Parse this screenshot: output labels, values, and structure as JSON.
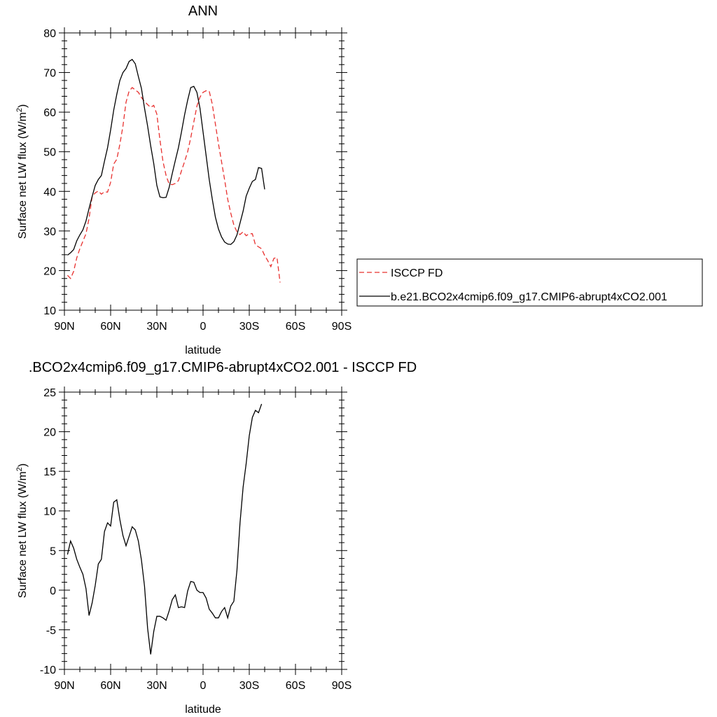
{
  "chart_data": [
    {
      "type": "line",
      "title": "ANN",
      "xlabel": "latitude",
      "ylabel": "Surface net LW flux (W/m",
      "ylabel_sup": "2",
      "ylabel_close": ")",
      "xlim": [
        90,
        -90
      ],
      "ylim": [
        10,
        80
      ],
      "xticks": [
        {
          "value": 90,
          "label": "90N"
        },
        {
          "value": 60,
          "label": "60N"
        },
        {
          "value": 30,
          "label": "30N"
        },
        {
          "value": 0,
          "label": "0"
        },
        {
          "value": -30,
          "label": "30S"
        },
        {
          "value": -60,
          "label": "60S"
        },
        {
          "value": -90,
          "label": "90S"
        }
      ],
      "yticks": [
        {
          "value": 10,
          "label": "10"
        },
        {
          "value": 20,
          "label": "20"
        },
        {
          "value": 30,
          "label": "30"
        },
        {
          "value": 40,
          "label": "40"
        },
        {
          "value": 50,
          "label": "50"
        },
        {
          "value": 60,
          "label": "60"
        },
        {
          "value": 70,
          "label": "70"
        },
        {
          "value": 80,
          "label": "80"
        }
      ],
      "grid": false,
      "legend_position": "outside-right",
      "series": [
        {
          "name": "ISCCP FD",
          "color": "#e8312f",
          "dash": "dashed",
          "points": [
            [
              88,
              18.8
            ],
            [
              86,
              18
            ],
            [
              84,
              19.8
            ],
            [
              82,
              23.2
            ],
            [
              80,
              25.5
            ],
            [
              78,
              27.4
            ],
            [
              76,
              29.3
            ],
            [
              74,
              33.2
            ],
            [
              72,
              38.7
            ],
            [
              70,
              39.6
            ],
            [
              68,
              40.1
            ],
            [
              66,
              39.3
            ],
            [
              64,
              39.9
            ],
            [
              62,
              39.8
            ],
            [
              60,
              42.3
            ],
            [
              58,
              46.9
            ],
            [
              56,
              48.1
            ],
            [
              54,
              51.9
            ],
            [
              52,
              56.5
            ],
            [
              50,
              62.5
            ],
            [
              48,
              65.3
            ],
            [
              46,
              66.2
            ],
            [
              44,
              65.6
            ],
            [
              42,
              65
            ],
            [
              40,
              63.7
            ],
            [
              38,
              62.7
            ],
            [
              36,
              61.9
            ],
            [
              34,
              61.2
            ],
            [
              32,
              61.7
            ],
            [
              30,
              59.5
            ],
            [
              28,
              53
            ],
            [
              26,
              47.5
            ],
            [
              24,
              44
            ],
            [
              22,
              41.8
            ],
            [
              20,
              41.7
            ],
            [
              18,
              42
            ],
            [
              16,
              42.7
            ],
            [
              14,
              45.2
            ],
            [
              12,
              47.5
            ],
            [
              10,
              50
            ],
            [
              8,
              53.5
            ],
            [
              6,
              57.5
            ],
            [
              4,
              61.5
            ],
            [
              2,
              63.8
            ],
            [
              0,
              65
            ],
            [
              -2,
              65.4
            ],
            [
              -4,
              65.3
            ],
            [
              -6,
              62
            ],
            [
              -8,
              57
            ],
            [
              -10,
              52
            ],
            [
              -12,
              47.5
            ],
            [
              -14,
              42.9
            ],
            [
              -16,
              38
            ],
            [
              -18,
              34.5
            ],
            [
              -20,
              31.5
            ],
            [
              -22,
              29.8
            ],
            [
              -24,
              29.1
            ],
            [
              -26,
              29.8
            ],
            [
              -28,
              28.8
            ],
            [
              -30,
              29.3
            ],
            [
              -32,
              29.3
            ],
            [
              -34,
              26.5
            ],
            [
              -36,
              26
            ],
            [
              -38,
              25.5
            ],
            [
              -40,
              23.8
            ],
            [
              -42,
              22.5
            ],
            [
              -44,
              21
            ],
            [
              -46,
              23.1
            ],
            [
              -48,
              23.3
            ],
            [
              -50,
              17
            ]
          ]
        },
        {
          "name": "b.e21.BCO2x4cmip6.f09_g17.CMIP6-abrupt4xCO2.001",
          "color": "#000000",
          "dash": "solid",
          "points": [
            [
              88,
              23.9
            ],
            [
              86,
              24.5
            ],
            [
              84,
              25.3
            ],
            [
              82,
              27.5
            ],
            [
              80,
              29
            ],
            [
              78,
              30.3
            ],
            [
              76,
              32.5
            ],
            [
              74,
              35.7
            ],
            [
              72,
              38.7
            ],
            [
              70,
              41.5
            ],
            [
              68,
              43
            ],
            [
              66,
              44
            ],
            [
              64,
              47.6
            ],
            [
              62,
              51
            ],
            [
              60,
              55.5
            ],
            [
              58,
              60.5
            ],
            [
              56,
              64.5
            ],
            [
              54,
              68
            ],
            [
              52,
              70
            ],
            [
              50,
              71
            ],
            [
              48,
              72.8
            ],
            [
              46,
              73.3
            ],
            [
              44,
              72.2
            ],
            [
              42,
              69
            ],
            [
              40,
              66
            ],
            [
              38,
              61
            ],
            [
              36,
              56.5
            ],
            [
              34,
              51.5
            ],
            [
              32,
              47
            ],
            [
              30,
              41.5
            ],
            [
              28,
              38.6
            ],
            [
              26,
              38.4
            ],
            [
              24,
              38.5
            ],
            [
              22,
              41
            ],
            [
              20,
              44.5
            ],
            [
              18,
              47.8
            ],
            [
              16,
              51
            ],
            [
              14,
              55
            ],
            [
              12,
              59.3
            ],
            [
              10,
              63
            ],
            [
              8,
              66.2
            ],
            [
              6,
              66.5
            ],
            [
              4,
              65
            ],
            [
              2,
              61
            ],
            [
              0,
              55
            ],
            [
              -2,
              49
            ],
            [
              -4,
              43
            ],
            [
              -6,
              38
            ],
            [
              -8,
              33.5
            ],
            [
              -10,
              30.5
            ],
            [
              -12,
              28.5
            ],
            [
              -14,
              27.2
            ],
            [
              -16,
              26.7
            ],
            [
              -18,
              26.6
            ],
            [
              -20,
              27.3
            ],
            [
              -22,
              29
            ],
            [
              -24,
              32
            ],
            [
              -26,
              35
            ],
            [
              -28,
              38.8
            ],
            [
              -30,
              40.8
            ],
            [
              -32,
              42.5
            ],
            [
              -34,
              43
            ],
            [
              -36,
              46
            ],
            [
              -38,
              45.8
            ],
            [
              -40,
              40.5
            ]
          ]
        }
      ]
    },
    {
      "type": "line",
      "title": ".BCO2x4cmip6.f09_g17.CMIP6-abrupt4xCO2.001 - ISCCP FD",
      "xlabel": "latitude",
      "ylabel": "Surface net LW flux (W/m",
      "ylabel_sup": "2",
      "ylabel_close": ")",
      "xlim": [
        90,
        -90
      ],
      "ylim": [
        -10,
        25
      ],
      "xticks": [
        {
          "value": 90,
          "label": "90N"
        },
        {
          "value": 60,
          "label": "60N"
        },
        {
          "value": 30,
          "label": "30N"
        },
        {
          "value": 0,
          "label": "0"
        },
        {
          "value": -30,
          "label": "30S"
        },
        {
          "value": -60,
          "label": "60S"
        },
        {
          "value": -90,
          "label": "90S"
        }
      ],
      "yticks": [
        {
          "value": -10,
          "label": "-10"
        },
        {
          "value": -5,
          "label": "-5"
        },
        {
          "value": 0,
          "label": "0"
        },
        {
          "value": 5,
          "label": "5"
        },
        {
          "value": 10,
          "label": "10"
        },
        {
          "value": 15,
          "label": "15"
        },
        {
          "value": 20,
          "label": "20"
        },
        {
          "value": 25,
          "label": "25"
        }
      ],
      "grid": false,
      "series": [
        {
          "color": "#000000",
          "dash": "solid",
          "points": [
            [
              88,
              4.5
            ],
            [
              86,
              6.2
            ],
            [
              84,
              5.3
            ],
            [
              82,
              3.9
            ],
            [
              80,
              2.9
            ],
            [
              78,
              2
            ],
            [
              76,
              0.2
            ],
            [
              74,
              -3.2
            ],
            [
              72,
              -1.6
            ],
            [
              70,
              0.6
            ],
            [
              68,
              3.3
            ],
            [
              66,
              3.9
            ],
            [
              64,
              7.4
            ],
            [
              62,
              8.5
            ],
            [
              60,
              8.1
            ],
            [
              58,
              11.1
            ],
            [
              56,
              11.4
            ],
            [
              54,
              8.9
            ],
            [
              52,
              6.9
            ],
            [
              50,
              5.6
            ],
            [
              48,
              6.8
            ],
            [
              46,
              8
            ],
            [
              44,
              7.6
            ],
            [
              42,
              6.2
            ],
            [
              40,
              3.8
            ],
            [
              38,
              0.5
            ],
            [
              36,
              -4.8
            ],
            [
              34,
              -8.1
            ],
            [
              32,
              -5.2
            ],
            [
              30,
              -3.3
            ],
            [
              28,
              -3.3
            ],
            [
              26,
              -3.5
            ],
            [
              24,
              -3.8
            ],
            [
              22,
              -2.6
            ],
            [
              20,
              -1.2
            ],
            [
              18,
              -0.6
            ],
            [
              16,
              -2.2
            ],
            [
              14,
              -2.1
            ],
            [
              12,
              -2.2
            ],
            [
              10,
              -0.1
            ],
            [
              8,
              1.1
            ],
            [
              6,
              1
            ],
            [
              4,
              0
            ],
            [
              2,
              -0.3
            ],
            [
              0,
              -0.3
            ],
            [
              -2,
              -1
            ],
            [
              -4,
              -2.4
            ],
            [
              -6,
              -2.9
            ],
            [
              -8,
              -3.5
            ],
            [
              -10,
              -3.5
            ],
            [
              -12,
              -2.7
            ],
            [
              -14,
              -2.2
            ],
            [
              -16,
              -3.5
            ],
            [
              -18,
              -2
            ],
            [
              -20,
              -1.4
            ],
            [
              -22,
              2.5
            ],
            [
              -24,
              8.5
            ],
            [
              -26,
              13
            ],
            [
              -28,
              16
            ],
            [
              -30,
              19.5
            ],
            [
              -32,
              21.8
            ],
            [
              -34,
              22.7
            ],
            [
              -36,
              22.4
            ],
            [
              -38,
              23.5
            ]
          ]
        }
      ]
    }
  ]
}
